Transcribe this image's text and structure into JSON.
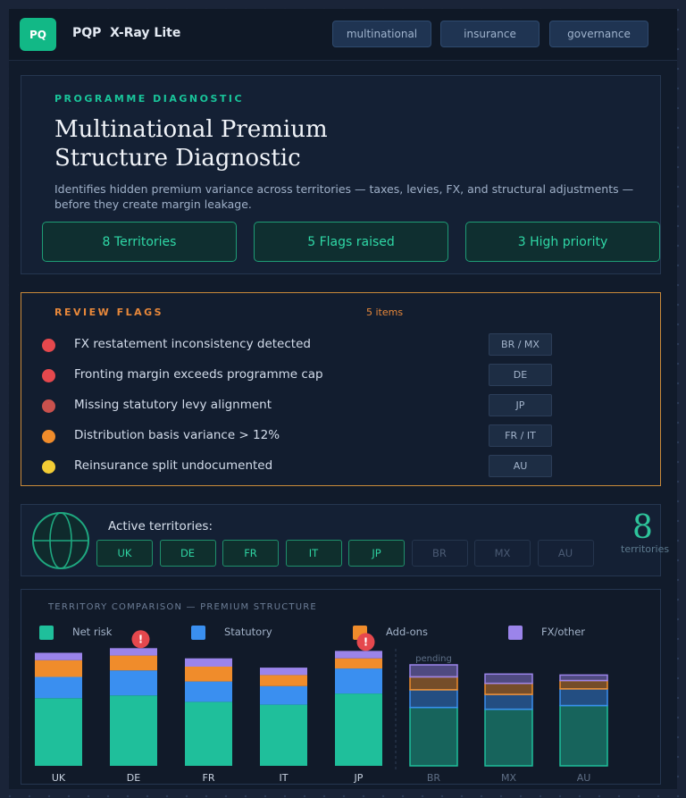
{
  "app": {
    "logo": "PQ",
    "name": "PQP  X-Ray Lite",
    "logo_color": "#12b886"
  },
  "tags": [
    "multinational",
    "insurance",
    "governance"
  ],
  "hero": {
    "eyebrow": "PROGRAMME DIAGNOSTIC",
    "title": "Multinational Premium Structure Diagnostic",
    "description": "Identifies hidden premium variance across territories — taxes, levies, FX, and structural adjustments — before they create margin leakage.",
    "stats": [
      "8  Territories",
      "5  Flags raised",
      "3  High priority"
    ]
  },
  "flags": {
    "title": "REVIEW FLAGS",
    "count": "5 items",
    "items": [
      {
        "text": "FX restatement inconsistency detected",
        "loc": "BR / MX",
        "color": "#e5484d"
      },
      {
        "text": "Fronting margin exceeds programme cap",
        "loc": "DE",
        "color": "#e5484d"
      },
      {
        "text": "Missing statutory levy alignment",
        "loc": "JP",
        "color": "#c9514d"
      },
      {
        "text": "Distribution basis variance > 12%",
        "loc": "FR / IT",
        "color": "#f08c2b"
      },
      {
        "text": "Reinsurance split undocumented",
        "loc": "AU",
        "color": "#f2cc35"
      }
    ]
  },
  "territories": {
    "label": "Active territories:",
    "count": "8",
    "count_caption": "territories",
    "chips": [
      {
        "code": "UK",
        "active": true
      },
      {
        "code": "DE",
        "active": true
      },
      {
        "code": "FR",
        "active": true
      },
      {
        "code": "IT",
        "active": true
      },
      {
        "code": "JP",
        "active": true
      },
      {
        "code": "BR",
        "active": false
      },
      {
        "code": "MX",
        "active": false
      },
      {
        "code": "AU",
        "active": false
      }
    ]
  },
  "chart_data": {
    "type": "bar",
    "stacked": true,
    "title": "TERRITORY COMPARISON — PREMIUM STRUCTURE",
    "categories": [
      "UK",
      "DE",
      "FR",
      "IT",
      "JP",
      "BR",
      "MX",
      "AU"
    ],
    "series": [
      {
        "name": "Net risk",
        "color": "#1fbf9b",
        "values": [
          73,
          76,
          69,
          66,
          78,
          63,
          61,
          65
        ]
      },
      {
        "name": "Statutory",
        "color": "#3a8ff0",
        "values": [
          23,
          27,
          22,
          20,
          27,
          19,
          16,
          18
        ]
      },
      {
        "name": "Add-ons",
        "color": "#f08c2b",
        "values": [
          18,
          16,
          16,
          12,
          11,
          14,
          12,
          9
        ]
      },
      {
        "name": "FX/other",
        "color": "#9b84ea",
        "values": [
          8,
          8,
          9,
          8,
          8,
          13,
          10,
          6
        ]
      }
    ],
    "flagged": [
      "DE",
      "JP"
    ],
    "flag_symbol": "!",
    "pending_label": "pending",
    "pending_categories": [
      "BR",
      "MX",
      "AU"
    ],
    "ylim": [
      0,
      135
    ],
    "legend": "top",
    "grid": false
  }
}
